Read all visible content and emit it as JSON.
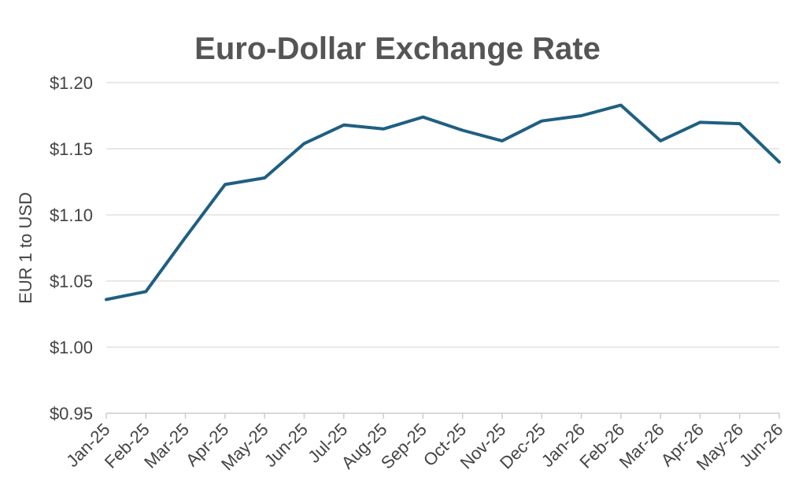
{
  "chart_data": {
    "type": "line",
    "title": "Euro-Dollar Exchange Rate",
    "xlabel": "",
    "ylabel": "EUR 1 to USD",
    "categories": [
      "Jan-25",
      "Feb-25",
      "Mar-25",
      "Apr-25",
      "May-25",
      "Jun-25",
      "Jul-25",
      "Aug-25",
      "Sep-25",
      "Oct-25",
      "Nov-25",
      "Dec-25",
      "Jan-26",
      "Feb-26",
      "Mar-26",
      "Apr-26",
      "May-26",
      "Jun-26"
    ],
    "series": [
      {
        "values": [
          1.036,
          1.042,
          1.083,
          1.123,
          1.128,
          1.154,
          1.168,
          1.165,
          1.174,
          1.164,
          1.156,
          1.171,
          1.175,
          1.183,
          1.156,
          1.17,
          1.169,
          1.14
        ],
        "color": "#1f5f82"
      }
    ],
    "ylim": [
      0.95,
      1.2
    ],
    "yticks": [
      0.95,
      1.0,
      1.05,
      1.1,
      1.15,
      1.2
    ],
    "ytick_labels": [
      "$0.95",
      "$1.00",
      "$1.05",
      "$1.10",
      "$1.15",
      "$1.20"
    ],
    "grid": true,
    "legend": "none"
  }
}
